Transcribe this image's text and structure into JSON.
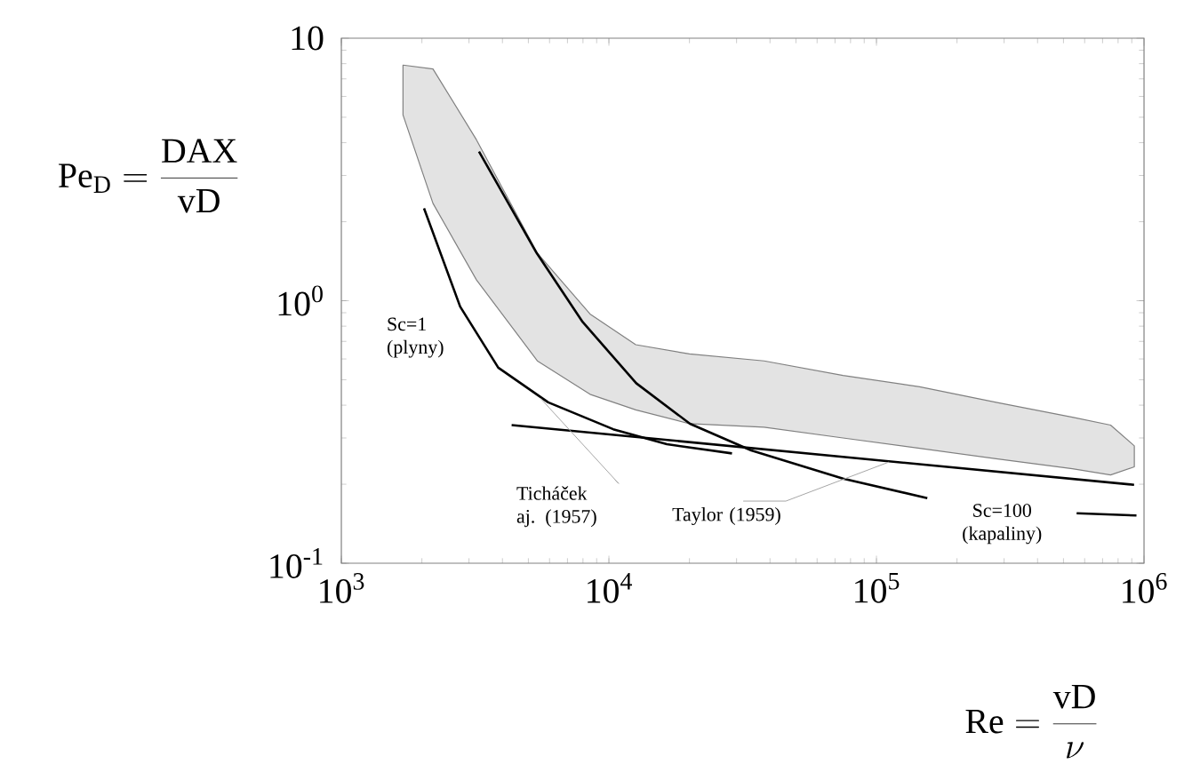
{
  "chart_data": {
    "type": "line",
    "log": "xy",
    "xlabel": "\\mathrm{Re} = \\frac{\\mathrm{vD}}{\\nu}",
    "ylabel": "\\mathrm{Pe}_{\\mathrm{D}} = \\frac{\\mathrm{DAX}}{\\mathrm{vD}}",
    "xlim": [
      1000,
      1000000
    ],
    "ylim": [
      0.1,
      10
    ],
    "xticks": [
      {
        "value": 1000,
        "label": "10$^{3}$"
      },
      {
        "value": 10000,
        "label": "10$^{4}$"
      },
      {
        "value": 100000,
        "label": "10$^{5}$"
      },
      {
        "value": 1000000,
        "label": "10$^{6}$"
      }
    ],
    "yticks": [
      {
        "value": 0.1,
        "label": "10$^{-1}$"
      },
      {
        "value": 1,
        "label": "10$^{0}$"
      },
      {
        "value": 10,
        "label": "10"
      }
    ],
    "series": [
      {
        "color": "#e3e3e3",
        "x": [
          1700,
          2200,
          3200,
          5400,
          8500,
          12600,
          20000,
          38000,
          75000,
          145000,
          280000,
          540000,
          750000,
          920000
        ],
        "values": [
          null,
          null,
          null,
          null,
          null,
          null,
          null,
          null,
          null,
          null,
          null,
          null,
          null,
          null
        ],
        "upper": [
          7.9,
          7.64,
          4.1,
          1.52,
          0.89,
          0.68,
          0.627,
          0.59,
          0.519,
          0.47,
          0.41,
          0.36,
          0.336,
          0.28
        ],
        "lower": [
          5.1,
          2.35,
          1.2,
          0.59,
          0.44,
          0.384,
          0.34,
          0.33,
          0.3,
          0.274,
          0.25,
          0.229,
          0.217,
          0.233
        ]
      },
      {
        "name": "Sc=1 (plyny)",
        "color": "#000000",
        "x": [
          2037,
          2780,
          3860,
          5930,
          10380,
          16470,
          28840
        ],
        "values": [
          2.25,
          0.95,
          0.556,
          0.41,
          0.324,
          0.284,
          0.262
        ]
      },
      {
        "name": "Sc=100 (kapaliny)",
        "color": "#000000",
        "x": [
          3270,
          5370,
          7980,
          12650,
          20090,
          34040,
          75000,
          154900,
          300000,
          560000,
          937000
        ],
        "values": [
          3.7,
          1.52,
          0.83,
          0.485,
          0.34,
          0.269,
          0.21,
          0.177,
          null,
          0.155,
          0.152
        ]
      },
      {
        "color": "#000000",
        "x": [
          4330,
          918000
        ],
        "values": [
          0.336,
          0.199
        ]
      }
    ],
    "annotations": [
      {
        "text": "Ticháček aj. (1957)",
        "x": 5550,
        "y": 0.425
      },
      {
        "text": "Taylor  (1959)",
        "x": 111400,
        "y": 0.243
      }
    ]
  }
}
